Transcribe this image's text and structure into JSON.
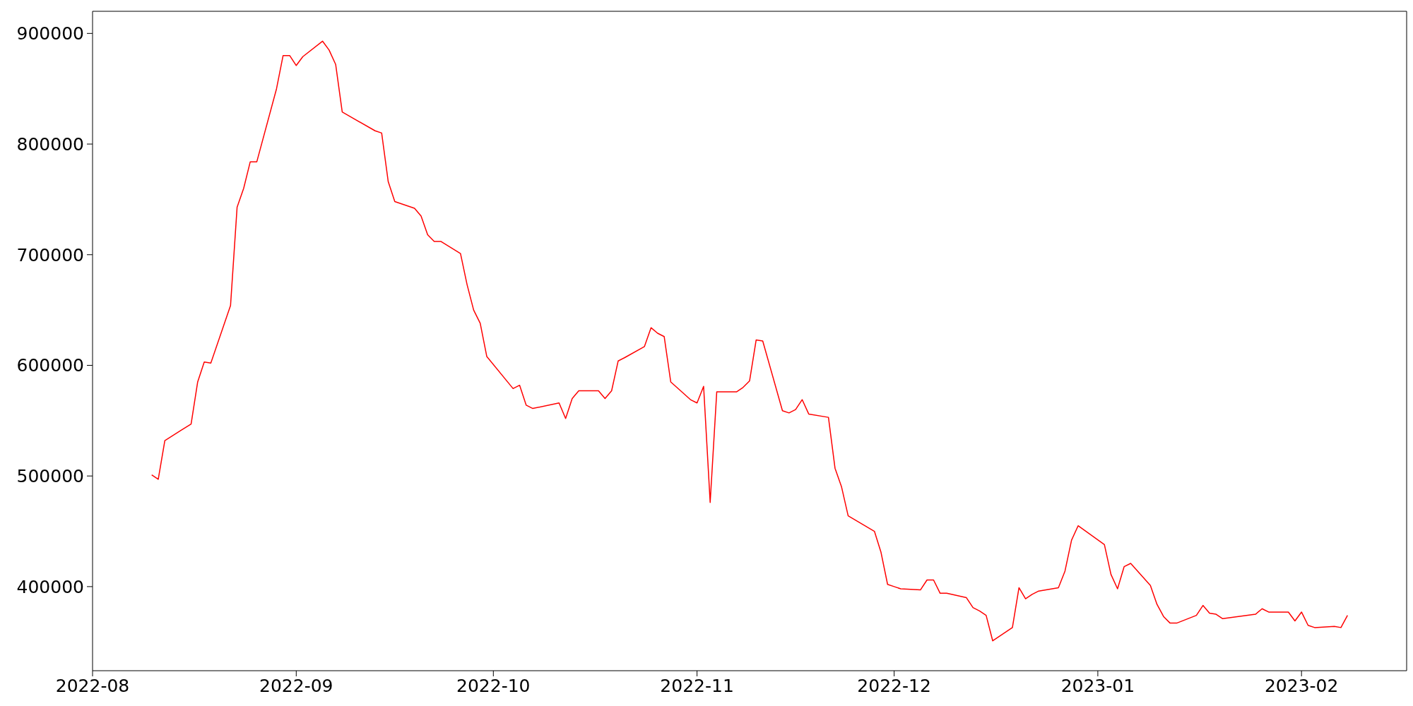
{
  "chart_data": {
    "type": "line",
    "x": [
      "2022-08-10",
      "2022-08-11",
      "2022-08-12",
      "2022-08-16",
      "2022-08-17",
      "2022-08-18",
      "2022-08-19",
      "2022-08-22",
      "2022-08-23",
      "2022-08-24",
      "2022-08-25",
      "2022-08-26",
      "2022-08-29",
      "2022-08-30",
      "2022-08-31",
      "2022-09-01",
      "2022-09-02",
      "2022-09-05",
      "2022-09-06",
      "2022-09-07",
      "2022-09-08",
      "2022-09-13",
      "2022-09-14",
      "2022-09-15",
      "2022-09-16",
      "2022-09-19",
      "2022-09-20",
      "2022-09-21",
      "2022-09-22",
      "2022-09-23",
      "2022-09-26",
      "2022-09-27",
      "2022-09-28",
      "2022-09-29",
      "2022-09-30",
      "2022-10-04",
      "2022-10-05",
      "2022-10-06",
      "2022-10-07",
      "2022-10-11",
      "2022-10-12",
      "2022-10-13",
      "2022-10-14",
      "2022-10-17",
      "2022-10-18",
      "2022-10-19",
      "2022-10-20",
      "2022-10-21",
      "2022-10-24",
      "2022-10-25",
      "2022-10-26",
      "2022-10-27",
      "2022-10-28",
      "2022-10-31",
      "2022-11-01",
      "2022-11-02",
      "2022-11-03",
      "2022-11-04",
      "2022-11-07",
      "2022-11-08",
      "2022-11-09",
      "2022-11-10",
      "2022-11-11",
      "2022-11-14",
      "2022-11-15",
      "2022-11-16",
      "2022-11-17",
      "2022-11-18",
      "2022-11-21",
      "2022-11-22",
      "2022-11-23",
      "2022-11-24",
      "2022-11-28",
      "2022-11-29",
      "2022-11-30",
      "2022-12-01",
      "2022-12-02",
      "2022-12-05",
      "2022-12-06",
      "2022-12-07",
      "2022-12-08",
      "2022-12-09",
      "2022-12-12",
      "2022-12-13",
      "2022-12-14",
      "2022-12-15",
      "2022-12-16",
      "2022-12-19",
      "2022-12-20",
      "2022-12-21",
      "2022-12-22",
      "2022-12-23",
      "2022-12-26",
      "2022-12-27",
      "2022-12-28",
      "2022-12-29",
      "2023-01-02",
      "2023-01-03",
      "2023-01-04",
      "2023-01-05",
      "2023-01-06",
      "2023-01-09",
      "2023-01-10",
      "2023-01-11",
      "2023-01-12",
      "2023-01-13",
      "2023-01-16",
      "2023-01-17",
      "2023-01-18",
      "2023-01-19",
      "2023-01-20",
      "2023-01-25",
      "2023-01-26",
      "2023-01-27",
      "2023-01-30",
      "2023-01-31",
      "2023-02-01",
      "2023-02-02",
      "2023-02-03",
      "2023-02-06",
      "2023-02-07",
      "2023-02-08"
    ],
    "series": [
      {
        "color": "#ff0000",
        "values": [
          501000,
          497000,
          532000,
          547000,
          585000,
          603000,
          602000,
          654000,
          743000,
          760000,
          784000,
          784000,
          850000,
          880000,
          880000,
          871000,
          879000,
          893000,
          885000,
          872000,
          829000,
          812000,
          810000,
          766000,
          748000,
          742000,
          735000,
          718000,
          712000,
          712000,
          701000,
          673000,
          650000,
          638000,
          608000,
          579000,
          582000,
          564000,
          561000,
          566000,
          552000,
          570000,
          577000,
          577000,
          570000,
          577000,
          604000,
          607000,
          617000,
          634000,
          629000,
          626000,
          585000,
          569000,
          566000,
          581000,
          476000,
          576000,
          576000,
          580000,
          586000,
          623000,
          622000,
          559000,
          557000,
          560000,
          569000,
          556000,
          553000,
          507000,
          490000,
          464000,
          450000,
          431000,
          402000,
          400000,
          398000,
          397000,
          406000,
          406000,
          394000,
          394000,
          390000,
          381000,
          378000,
          374000,
          351000,
          363000,
          399000,
          389000,
          393000,
          396000,
          399000,
          414000,
          442000,
          455000,
          438000,
          411000,
          398000,
          418000,
          421000,
          401000,
          384000,
          373000,
          367000,
          367000,
          374000,
          383000,
          376000,
          375000,
          371000,
          375000,
          380000,
          377000,
          377000,
          369000,
          377000,
          365000,
          363000,
          364000,
          363000,
          374000
        ]
      }
    ],
    "xlim": [
      "2022-08-01",
      "2023-02-17"
    ],
    "xticks": [
      "2022-08",
      "2022-09",
      "2022-10",
      "2022-11",
      "2022-12",
      "2023-01",
      "2023-02"
    ],
    "ylim": [
      324000,
      920000
    ],
    "yticks": [
      400000,
      500000,
      600000,
      700000,
      800000,
      900000
    ],
    "line_style": "solid",
    "marker": "none",
    "grid": false,
    "legend": false
  }
}
